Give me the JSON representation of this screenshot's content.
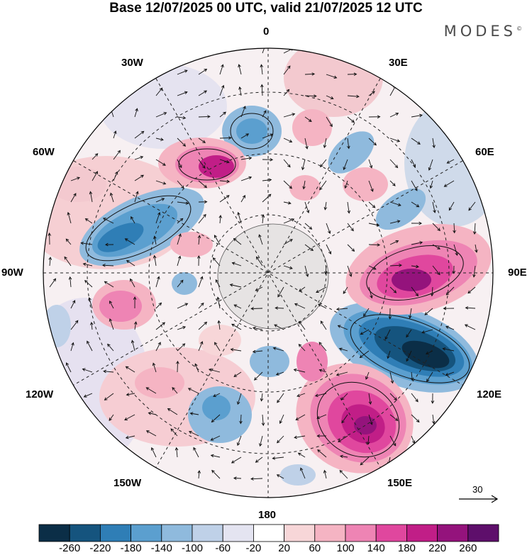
{
  "title": "Base 12/07/2025 00 UTC, valid 21/07/2025 12 UTC",
  "brand": "MODES",
  "brand_mark": "©",
  "longitude_labels": {
    "top": "0",
    "bottom": "180",
    "left": "90W",
    "right": "90E",
    "upper_left_1": "30W",
    "upper_left_2": "60W",
    "upper_right_1": "30E",
    "upper_right_2": "60E",
    "lower_left_1": "120W",
    "lower_left_2": "150W",
    "lower_right_1": "120E",
    "lower_right_2": "150E"
  },
  "wind_scale": {
    "value": "30"
  },
  "colorbar": {
    "ticks": [
      "-260",
      "-220",
      "-180",
      "-140",
      "-100",
      "-60",
      "-20",
      "20",
      "60",
      "100",
      "140",
      "180",
      "220",
      "260"
    ],
    "colors": [
      "#0b2e47",
      "#15547e",
      "#2f7eb6",
      "#5b9fcf",
      "#8fbadd",
      "#bfd1e8",
      "#e4e4f1",
      "#ffffff",
      "#f7d6d8",
      "#f5b4c3",
      "#ee84b4",
      "#e0479e",
      "#c11e87",
      "#94137c",
      "#5e0f6b"
    ]
  },
  "colors": {
    "land": "#e6e3e3",
    "coast": "#5a5a5a"
  }
}
